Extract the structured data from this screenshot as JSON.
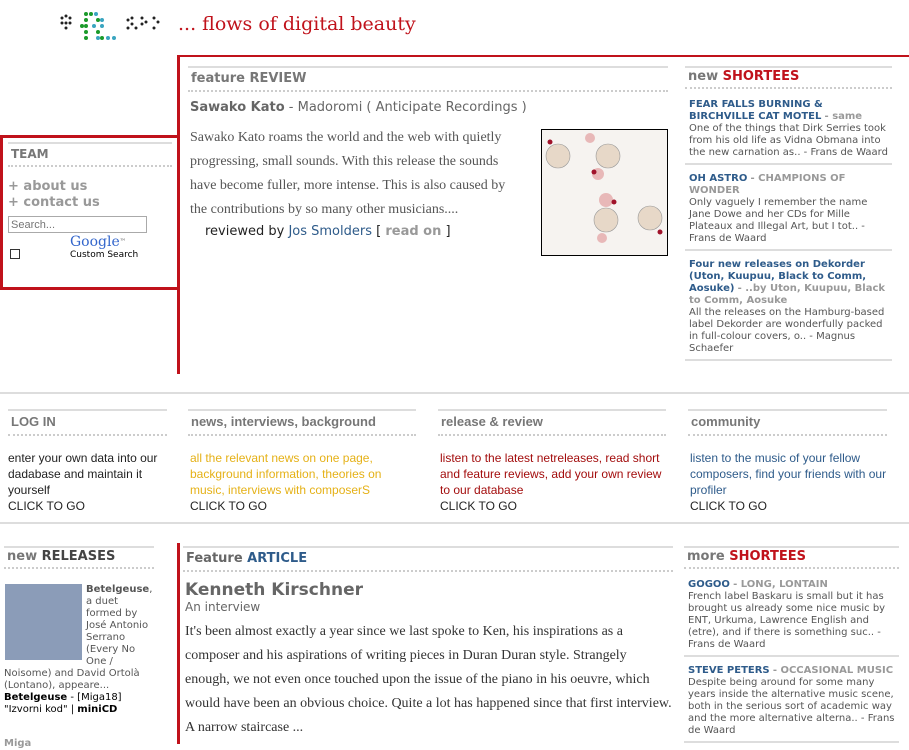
{
  "logo": {
    "text": "e3lab s"
  },
  "tagline": "... flows of digital beauty",
  "colors": {
    "accent_red": "#c0121b",
    "link_blue": "#2e5b8a",
    "news_yellow": "#e5b117",
    "release_red": "#a30d0d"
  },
  "team": {
    "title": "TEAM",
    "links": [
      "+ about us",
      "+ contact us"
    ],
    "search_placeholder": "Search...",
    "google": "Google",
    "google_tm": "™",
    "custom_search": "Custom Search"
  },
  "feature_review": {
    "label_a": "feature ",
    "label_b": "REVIEW",
    "artist": "Sawako Kato",
    "rest": " - Madoromi ( Anticipate Recordings )",
    "body": "Sawako Kato roams the world and the web with quietly progressing, small sounds. With this release the sounds have become fuller, more intense. This is also caused by the contributions by so many other musicians....",
    "reviewed_by": "reviewed by ",
    "reviewer": "Jos Smolders",
    "bracket_open": " [ ",
    "read_on": "read on",
    "bracket_close": " ]"
  },
  "new_shortees": {
    "label_a": "new ",
    "label_b": "SHORTEES",
    "items": [
      {
        "title": "FEAR FALLS BURNING & BIRCHVILLE CAT MOTEL",
        "sub": "same",
        "text": "One of the things that Dirk Serries took from his old life as Vidna Obmana into the new carnation as.. - Frans de Waard"
      },
      {
        "title": "OH ASTRO",
        "sub": "CHAMPIONS OF WONDER",
        "text": "Only vaguely I remember the name Jane Dowe and her CDs for Mille Plateaux and Illegal Art, but I tot.. - Frans de Waard"
      },
      {
        "title": "Four new releases on Dekorder (Uton, Kuupuu, Black to Comm, Aosuke)",
        "sub": "..by Uton, Kuupuu, Black to Comm, Aosuke",
        "text": "All the releases on the Hamburg-based label Dekorder are wonderfully packed in full-colour covers, o.. - Magnus Schaefer"
      }
    ]
  },
  "boxes": [
    {
      "title": "LOG IN",
      "text": "enter your own data into our dadabase and maintain it yourself",
      "cta": "CLICK TO GO"
    },
    {
      "title": "news, interviews, background",
      "text": "all the relevant news on one page, background information, theories on music, interviews with composerS",
      "cta": "CLICK TO GO"
    },
    {
      "title": "release & review",
      "text": "listen to the latest netreleases, read short and feature reviews, add your own review to our database",
      "cta": "CLICK TO GO"
    },
    {
      "title": "community",
      "text": "listen to the music of your fellow composers, find your friends with our profiler",
      "cta": "CLICK TO GO"
    }
  ],
  "new_releases": {
    "label_a": "new ",
    "label_b": "RELEASES",
    "lead": "Betelgeuse",
    "desc": ", a duet formed by José Antonio Serrano (Every No One / Noisome) and David Ortolà (Lontano), appeare...",
    "artist": "Betelgeuse",
    "catalog": " - [Miga18] \"Izvorni kod\" | ",
    "format": "miniCD",
    "label": "Miga"
  },
  "feature_article": {
    "label_a": "Feature ",
    "label_b": "ARTICLE",
    "title": "Kenneth Kirschner",
    "subtitle": "An interview",
    "body": "It's been almost exactly a year since we last spoke to Ken, his inspirations as a composer and his aspirations of writing pieces in Duran Duran style. Strangely enough, we not even once touched upon the issue of the piano in his oeuvre, which would have been an obvious choice. Quite a lot has happened since that first interview. A narrow staircase ..."
  },
  "more_shortees": {
    "label_a": "more ",
    "label_b": "SHORTEES",
    "items": [
      {
        "title": "GOGOO",
        "sub": "LONG, LONTAIN",
        "text": "French label Baskaru is small but it has brought us already some nice music by ENT, Urkuma, Lawrence English and (etre), and if there is something suc.. - Frans de Waard"
      },
      {
        "title": "STEVE PETERS",
        "sub": "OCCASIONAL MUSIC",
        "text": "Despite being around for some many years inside the alternative music scene, both in the serious sort of academic way and the more alternative alterna.. - Frans de Waard"
      }
    ]
  }
}
